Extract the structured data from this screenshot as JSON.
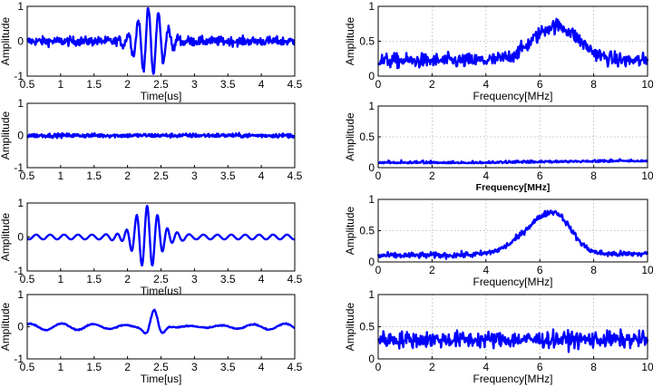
{
  "chart_data": [
    {
      "id": "p1",
      "type": "line",
      "domain": "time",
      "signal": "noisy-burst",
      "xlabel": "Time[us]",
      "ylabel": "Amplitude",
      "xlim": [
        0.5,
        4.5
      ],
      "ylim": [
        -1,
        1
      ],
      "xticks": [
        "0.5",
        "1",
        "1.5",
        "2",
        "2.5",
        "3",
        "3.5",
        "4",
        "4.5"
      ],
      "yticks": [
        "1",
        "0",
        "-1"
      ],
      "grid": false,
      "color": "#0000ff"
    },
    {
      "id": "p2",
      "type": "line",
      "domain": "freq",
      "signal": "broad-peak",
      "xlabel": "Frequency[MHz]",
      "ylabel": "Amplitude",
      "xlim": [
        0,
        10
      ],
      "ylim": [
        0,
        1
      ],
      "xticks": [
        "0",
        "2",
        "4",
        "6",
        "8",
        "10"
      ],
      "yticks": [
        "1",
        "0.5",
        "0"
      ],
      "grid": true,
      "peak_frequency": 6.6,
      "color": "#0000ff"
    },
    {
      "id": "p3",
      "type": "line",
      "domain": "time",
      "signal": "noise",
      "xlabel": "",
      "ylabel": "Amplitude",
      "xlim": [
        0.5,
        4.5
      ],
      "ylim": [
        -1,
        1
      ],
      "xticks": [
        "0.5",
        "1",
        "1.5",
        "2",
        "2.5",
        "3",
        "3.5",
        "4",
        "4.5"
      ],
      "yticks": [
        "1",
        "0",
        "-1"
      ],
      "grid": false,
      "color": "#0000ff"
    },
    {
      "id": "p4",
      "type": "line",
      "domain": "freq",
      "signal": "flat-low",
      "xlabel": "Frequency[MHz]",
      "ylabel": "Amplitude",
      "xlim": [
        0,
        10
      ],
      "ylim": [
        0,
        1
      ],
      "xticks": [
        "0",
        "2",
        "4",
        "6",
        "8",
        "10"
      ],
      "yticks": [
        "1",
        "0.5",
        "0"
      ],
      "grid": true,
      "color": "#0000ff"
    },
    {
      "id": "p5",
      "type": "line",
      "domain": "time",
      "signal": "clean-burst",
      "xlabel": "Time[us]",
      "ylabel": "Amplitude",
      "xlim": [
        0.5,
        4.5
      ],
      "ylim": [
        -1,
        1
      ],
      "xticks": [
        "0.5",
        "1",
        "1.5",
        "2",
        "2.5",
        "3",
        "3.5",
        "4",
        "4.5"
      ],
      "yticks": [
        "1",
        "0",
        "-1"
      ],
      "grid": false,
      "center_time": 2.3,
      "color": "#0000ff"
    },
    {
      "id": "p6",
      "type": "line",
      "domain": "freq",
      "signal": "sharp-peak",
      "xlabel": "Frequency[MHz]",
      "ylabel": "Amplitude",
      "xlim": [
        0,
        10
      ],
      "ylim": [
        0,
        1
      ],
      "xticks": [
        "0",
        "2",
        "4",
        "6",
        "8",
        "10"
      ],
      "yticks": [
        "1",
        "0.5",
        "0"
      ],
      "grid": true,
      "peak_frequency": 6.5,
      "color": "#0000ff"
    },
    {
      "id": "p7",
      "type": "line",
      "domain": "time",
      "signal": "small-pulse",
      "xlabel": "Time[us]",
      "ylabel": "Amplitude",
      "xlim": [
        0.5,
        4.5
      ],
      "ylim": [
        -1,
        1
      ],
      "xticks": [
        "0.5",
        "1",
        "1.5",
        "2",
        "2.5",
        "3",
        "3.5",
        "4",
        "4.5"
      ],
      "yticks": [
        "1",
        "0",
        "-1"
      ],
      "grid": false,
      "center_time": 2.4,
      "color": "#0000ff"
    },
    {
      "id": "p8",
      "type": "line",
      "domain": "freq",
      "signal": "noise-spectrum",
      "xlabel": "Frequency[MHz]",
      "ylabel": "Amplitude",
      "xlim": [
        0,
        10
      ],
      "ylim": [
        0,
        1
      ],
      "xticks": [
        "0",
        "2",
        "4",
        "6",
        "8",
        "10"
      ],
      "yticks": [
        "1",
        "0.5",
        "0"
      ],
      "grid": true,
      "color": "#0000ff"
    }
  ]
}
